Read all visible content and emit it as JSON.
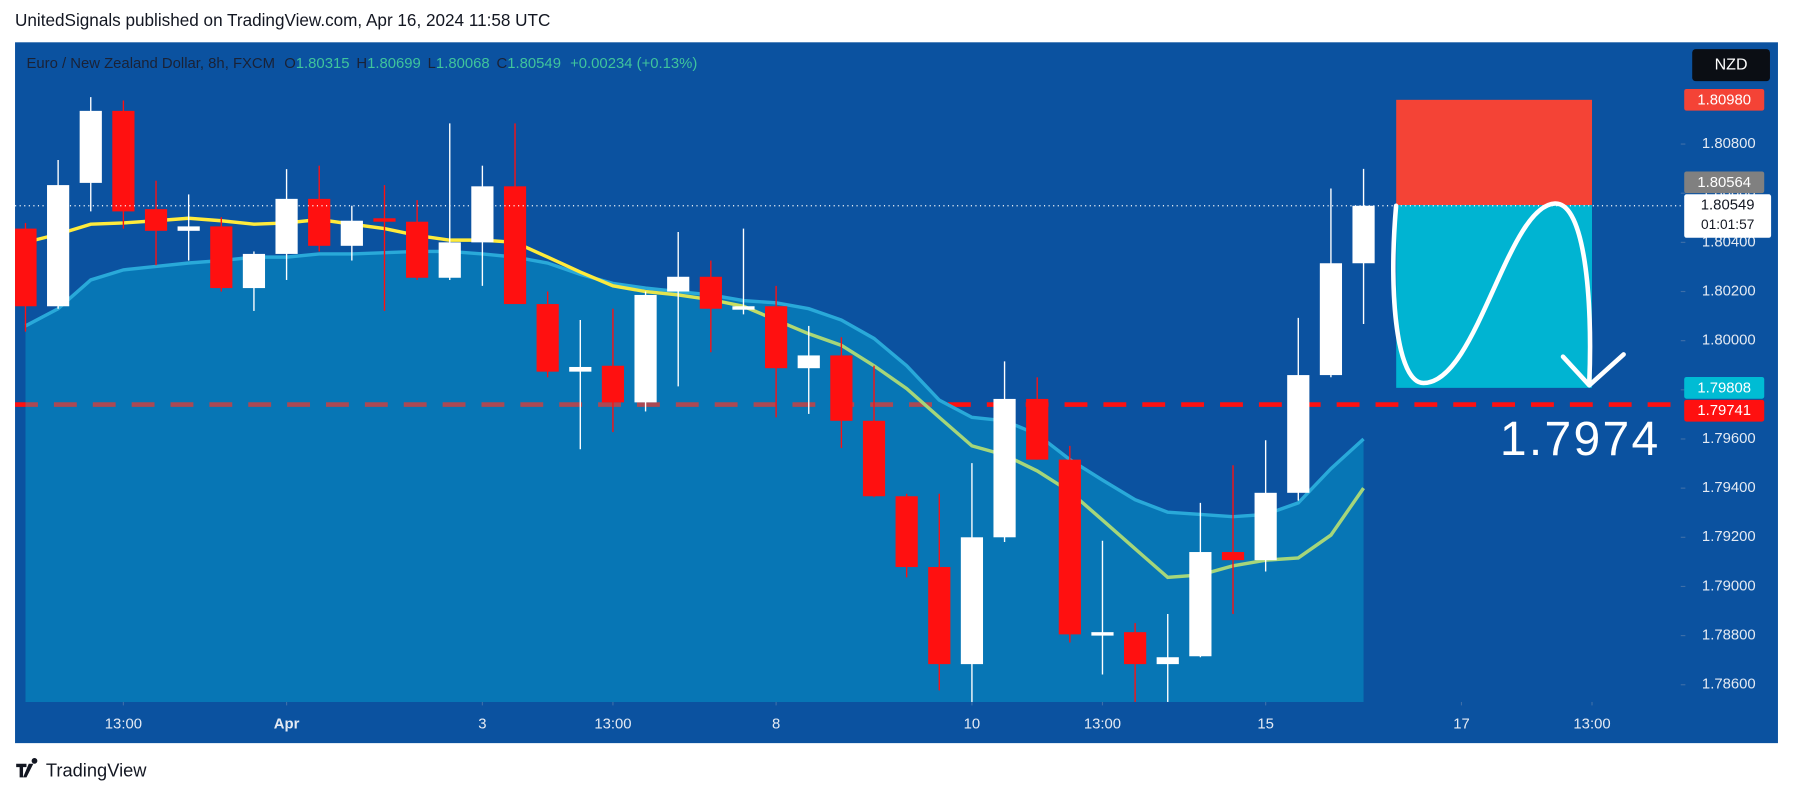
{
  "chart_data": {
    "type": "candlestick",
    "header": "UnitedSignals published on TradingView.com, Apr 16, 2024 11:58 UTC",
    "legend": {
      "symbol": "Euro / New Zealand Dollar, 8h, FXCM",
      "items": [
        {
          "key": "O",
          "value": "1.80315"
        },
        {
          "key": "H",
          "value": "1.80699"
        },
        {
          "key": "L",
          "value": "1.80068"
        },
        {
          "key": "C",
          "value": "1.80549"
        }
      ],
      "change": "+0.00234 (+0.13%)"
    },
    "currency": "NZD",
    "open": [
      1.80456,
      1.8014,
      1.80642,
      1.80935,
      1.80535,
      1.80447,
      1.80465,
      1.80214,
      1.80353,
      1.80577,
      1.80386,
      1.80498,
      1.80484,
      1.80256,
      1.804,
      1.80628,
      1.80149,
      1.79874,
      1.79898,
      1.79749,
      1.802,
      1.8026,
      1.80126,
      1.8014,
      1.79888,
      1.7994,
      1.79674,
      1.79367,
      1.79079,
      1.78684,
      1.792,
      1.79763,
      1.79516,
      1.788,
      1.78814,
      1.78684,
      1.78716,
      1.7914,
      1.79107,
      1.79381,
      1.7986,
      1.80315
    ],
    "high": [
      1.80479,
      1.80735,
      1.80991,
      1.80977,
      1.80651,
      1.80595,
      1.80502,
      1.80363,
      1.80698,
      1.80712,
      1.80549,
      1.80633,
      1.80572,
      1.80884,
      1.80712,
      1.80884,
      1.802,
      1.80084,
      1.8013,
      1.802,
      1.80442,
      1.80326,
      1.80456,
      1.80223,
      1.8006,
      1.80014,
      1.79898,
      1.79377,
      1.79377,
      1.79502,
      1.79916,
      1.79851,
      1.79572,
      1.79186,
      1.78851,
      1.78888,
      1.7934,
      1.79493,
      1.79595,
      1.80093,
      1.80619,
      1.80699
    ],
    "low": [
      1.80037,
      1.8013,
      1.80526,
      1.80456,
      1.80307,
      1.80326,
      1.802,
      1.80121,
      1.80247,
      1.80363,
      1.80326,
      1.80121,
      1.80247,
      1.80247,
      1.80223,
      1.80149,
      1.79851,
      1.79558,
      1.79628,
      1.79712,
      1.79814,
      1.79953,
      1.80107,
      1.79688,
      1.79702,
      1.79563,
      1.79363,
      1.79037,
      1.78577,
      1.7853,
      1.79181,
      1.79516,
      1.78772,
      1.78642,
      1.7853,
      1.7853,
      1.78712,
      1.78888,
      1.79061,
      1.79349,
      1.79851,
      1.80068
    ],
    "close": [
      1.8014,
      1.80633,
      1.80935,
      1.80526,
      1.80447,
      1.80465,
      1.80214,
      1.80353,
      1.80577,
      1.80386,
      1.80488,
      1.80484,
      1.80256,
      1.804,
      1.80628,
      1.80149,
      1.79874,
      1.79893,
      1.79749,
      1.80186,
      1.8026,
      1.8013,
      1.8014,
      1.79888,
      1.7994,
      1.79674,
      1.79367,
      1.79079,
      1.78684,
      1.792,
      1.79763,
      1.79516,
      1.78805,
      1.78814,
      1.78684,
      1.78712,
      1.7914,
      1.79107,
      1.79381,
      1.7986,
      1.80315,
      1.80549
    ],
    "up_color": "#ffffff",
    "down_color": "#ff1010",
    "band": {
      "values": [
        1.8006,
        1.8013,
        1.80247,
        1.80288,
        1.80302,
        1.80316,
        1.80326,
        1.8034,
        1.8034,
        1.80353,
        1.80353,
        1.80358,
        1.80363,
        1.80363,
        1.80353,
        1.8034,
        1.80316,
        1.8027,
        1.80233,
        1.80214,
        1.802,
        1.80186,
        1.80163,
        1.80154,
        1.8013,
        1.80084,
        1.80009,
        1.79898,
        1.79758,
        1.79688,
        1.79674,
        1.79619,
        1.79516,
        1.79433,
        1.79353,
        1.79302,
        1.79293,
        1.79284,
        1.79293,
        1.7934,
        1.79479,
        1.796
      ],
      "color": "#29a9d9",
      "fill": "rgba(0,190,225,0.33)"
    },
    "ma": {
      "values": [
        1.804,
        1.80433,
        1.80474,
        1.80479,
        1.80488,
        1.80498,
        1.80488,
        1.80474,
        1.80479,
        1.80493,
        1.80474,
        1.80456,
        1.80428,
        1.80409,
        1.80409,
        1.804,
        1.8034,
        1.80279,
        1.80223,
        1.802,
        1.80186,
        1.80167,
        1.8014,
        1.80084,
        1.80028,
        1.79981,
        1.79898,
        1.79805,
        1.79688,
        1.79572,
        1.79535,
        1.7947,
        1.79386,
        1.7927,
        1.79153,
        1.79037,
        1.79047,
        1.79084,
        1.79107,
        1.79116,
        1.79209,
        1.794
      ],
      "colors": [
        "#ffeb3b",
        "#a5d67a"
      ]
    },
    "xlim": [
      -0.32,
      50.72
    ],
    "xticks": [
      {
        "value": 3,
        "label": "13:00"
      },
      {
        "value": 8,
        "label": "Apr"
      },
      {
        "value": 14,
        "label": "3"
      },
      {
        "value": 18,
        "label": "13:00"
      },
      {
        "value": 23,
        "label": "8"
      },
      {
        "value": 29,
        "label": "10"
      },
      {
        "value": 33,
        "label": "13:00"
      },
      {
        "value": 38,
        "label": "15"
      },
      {
        "value": 44,
        "label": "17"
      },
      {
        "value": 48,
        "label": "13:00"
      }
    ],
    "ylim": [
      1.7853,
      1.81214
    ],
    "yticks": [
      {
        "value": 1.786,
        "label": "1.78600"
      },
      {
        "value": 1.788,
        "label": "1.78800"
      },
      {
        "value": 1.79,
        "label": "1.79000"
      },
      {
        "value": 1.792,
        "label": "1.79200"
      },
      {
        "value": 1.794,
        "label": "1.79400"
      },
      {
        "value": 1.796,
        "label": "1.79600"
      },
      {
        "value": 1.798,
        "label": "1.79800"
      },
      {
        "value": 1.8,
        "label": "1.80000"
      },
      {
        "value": 1.802,
        "label": "1.80200"
      },
      {
        "value": 1.804,
        "label": "1.80400"
      },
      {
        "value": 1.806,
        "label": "1.80600"
      },
      {
        "value": 1.808,
        "label": "1.80800"
      }
    ],
    "grid": false,
    "level": {
      "value": 1.7974,
      "color": "#ff1010"
    },
    "annotation": "1.7974",
    "position": {
      "x": [
        42,
        48
      ],
      "stop": 1.8098,
      "entry": 1.80552,
      "target": 1.79808,
      "stop_color": "#f44336",
      "target_color": "#00b4d2"
    },
    "last_price": 1.80549,
    "countdown": "01:01:57",
    "price_labels": [
      {
        "value": 1.80549,
        "label": "1.80549",
        "color": "#ffffff"
      },
      {
        "value": 1.8098,
        "label": "1.80980",
        "color": "#f44336"
      },
      {
        "value": 1.80564,
        "label": "1.80564",
        "color": "#808080"
      },
      {
        "value": 1.79808,
        "label": "1.79808",
        "color": "#00bcd4"
      },
      {
        "value": 1.79741,
        "label": "1.79741",
        "color": "#ff1010"
      }
    ],
    "footer": "TradingView"
  }
}
